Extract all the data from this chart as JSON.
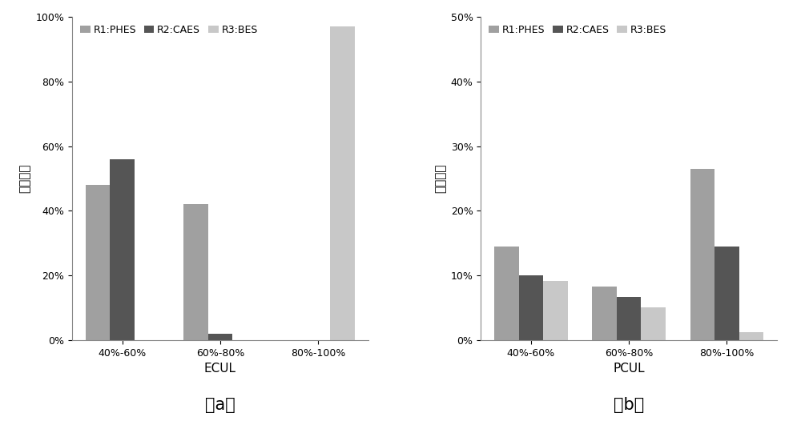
{
  "chart_a": {
    "categories": [
      "40%-60%",
      "60%-80%",
      "80%-100%"
    ],
    "xlabel": "ECUL",
    "ylabel": "概率密度",
    "ylim": [
      0,
      1.0
    ],
    "yticks": [
      0,
      0.2,
      0.4,
      0.6,
      0.8,
      1.0
    ],
    "series": {
      "R1:PHES": [
        0.48,
        0.42,
        0.0
      ],
      "R2:CAES": [
        0.56,
        0.02,
        0.0
      ],
      "R3:BES": [
        0.0,
        0.0,
        0.97
      ]
    },
    "label": "a"
  },
  "chart_b": {
    "categories": [
      "40%-60%",
      "60%-80%",
      "80%-100%"
    ],
    "xlabel": "PCUL",
    "ylabel": "概率密度",
    "ylim": [
      0,
      0.5
    ],
    "yticks": [
      0,
      0.1,
      0.2,
      0.3,
      0.4,
      0.5
    ],
    "series": {
      "R1:PHES": [
        0.145,
        0.083,
        0.265
      ],
      "R2:CAES": [
        0.1,
        0.067,
        0.145
      ],
      "R3:BES": [
        0.091,
        0.05,
        0.012
      ]
    },
    "label": "b"
  },
  "colors": {
    "R1:PHES": "#a0a0a0",
    "R2:CAES": "#555555",
    "R3:BES": "#c8c8c8"
  },
  "bar_width": 0.25,
  "background_color": "#ffffff",
  "legend_fontsize": 9,
  "axis_label_fontsize": 11,
  "tick_fontsize": 9,
  "subplot_label_fontsize": 15
}
